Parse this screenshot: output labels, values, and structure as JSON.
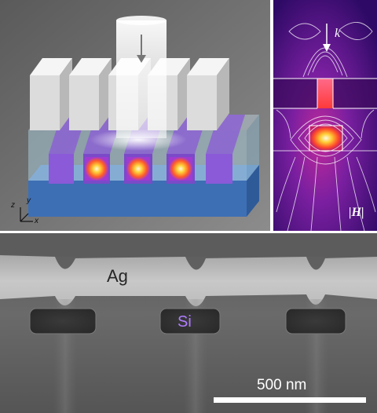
{
  "schematic": {
    "axis_labels": {
      "x": "x",
      "y": "y",
      "z": "z"
    }
  },
  "field_map": {
    "wavevector_label": "k",
    "field_label": "|H|"
  },
  "sem_image": {
    "top_material_label": "Ag",
    "core_material_label": "Si",
    "scale_bar_label": "500 nm"
  },
  "colors": {
    "silver": "#e0e0e0",
    "substrate": "#3d6fb5",
    "waveguide": "#8a5ad8",
    "field_background": "#3a0d6e",
    "field_hot": "#ffcc33",
    "si_label": "#b07cff"
  }
}
